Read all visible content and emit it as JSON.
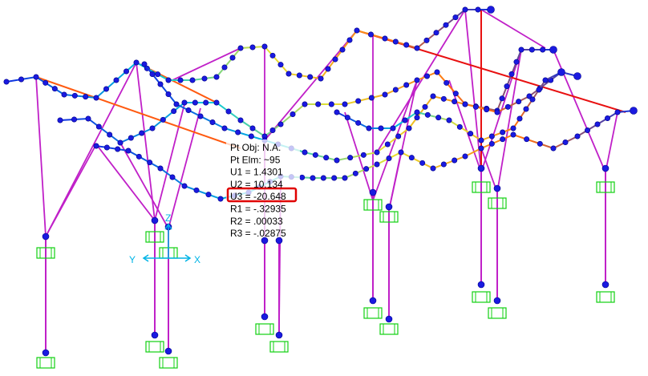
{
  "tooltip": {
    "lines": [
      "Pt Obj: N.A.",
      "Pt Elm: ~95",
      "U1 = 1.4301",
      "U2 = 10.134",
      "U3 = -20.648",
      "R1 = -.32935",
      "R2 = .00033",
      "R3 = -.02875"
    ]
  },
  "axes": {
    "x": "X",
    "y": "Y",
    "z": "Z"
  }
}
